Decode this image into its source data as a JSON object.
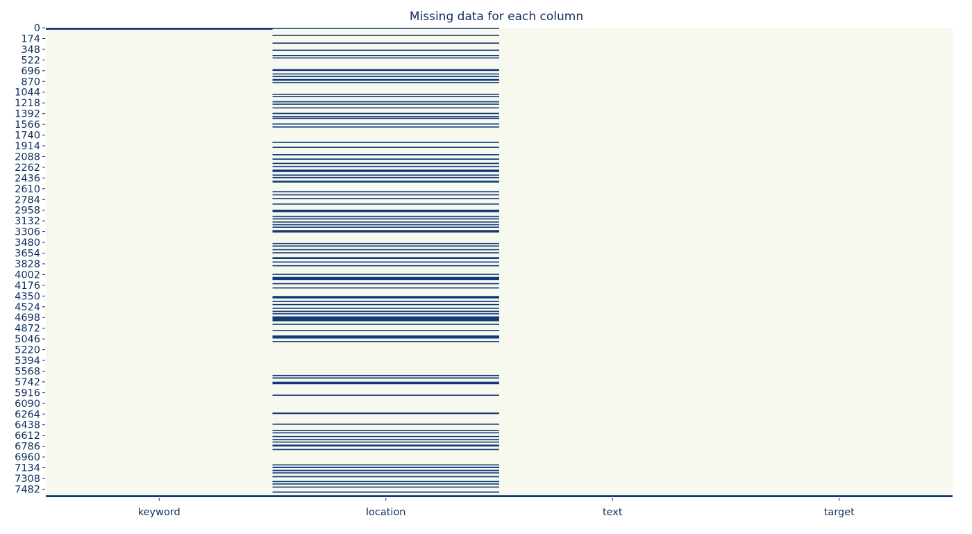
{
  "chart_data": {
    "type": "heatmap",
    "title": "Missing data for each column",
    "xlabel": "",
    "ylabel": "",
    "columns": [
      "keyword",
      "location",
      "text",
      "target"
    ],
    "y_tick_labels": [
      "0",
      "174",
      "348",
      "522",
      "696",
      "870",
      "1044",
      "1218",
      "1392",
      "1566",
      "1740",
      "1914",
      "2088",
      "2262",
      "2436",
      "2610",
      "2784",
      "2958",
      "3132",
      "3306",
      "3480",
      "3654",
      "3828",
      "4002",
      "4176",
      "4350",
      "4524",
      "4698",
      "4872",
      "5046",
      "5220",
      "5394",
      "5568",
      "5742",
      "5916",
      "6090",
      "6264",
      "6438",
      "6612",
      "6786",
      "6960",
      "7134",
      "7308",
      "7482"
    ],
    "row_count": 7613,
    "ylim": [
      0,
      7613
    ],
    "legend": "none",
    "colors": {
      "present": "#f7f9ee",
      "missing": "#123a7a",
      "text": "#0e2c5e"
    },
    "missing_rows": {
      "keyword": [
        [
          0,
          32
        ],
        [
          7581,
          7613
        ]
      ],
      "location": [
        [
          0,
          18
        ],
        [
          115,
          133
        ],
        [
          240,
          258
        ],
        [
          355,
          373
        ],
        [
          440,
          462
        ],
        [
          480,
          498
        ],
        [
          670,
          700
        ],
        [
          740,
          758
        ],
        [
          780,
          800
        ],
        [
          830,
          860
        ],
        [
          880,
          898
        ],
        [
          1070,
          1088
        ],
        [
          1105,
          1123
        ],
        [
          1190,
          1210
        ],
        [
          1230,
          1248
        ],
        [
          1290,
          1308
        ],
        [
          1380,
          1400
        ],
        [
          1430,
          1448
        ],
        [
          1460,
          1478
        ],
        [
          1550,
          1570
        ],
        [
          1600,
          1618
        ],
        [
          1850,
          1868
        ],
        [
          1930,
          1948
        ],
        [
          2050,
          2068
        ],
        [
          2120,
          2140
        ],
        [
          2190,
          2210
        ],
        [
          2240,
          2258
        ],
        [
          2300,
          2340
        ],
        [
          2380,
          2398
        ],
        [
          2420,
          2440
        ],
        [
          2480,
          2510
        ],
        [
          2650,
          2668
        ],
        [
          2700,
          2718
        ],
        [
          2760,
          2778
        ],
        [
          2850,
          2868
        ],
        [
          2950,
          2990
        ],
        [
          3050,
          3068
        ],
        [
          3090,
          3108
        ],
        [
          3140,
          3160
        ],
        [
          3185,
          3203
        ],
        [
          3225,
          3243
        ],
        [
          3280,
          3320
        ],
        [
          3490,
          3508
        ],
        [
          3530,
          3550
        ],
        [
          3590,
          3608
        ],
        [
          3640,
          3658
        ],
        [
          3720,
          3750
        ],
        [
          3790,
          3808
        ],
        [
          3850,
          3868
        ],
        [
          3990,
          4008
        ],
        [
          4040,
          4090
        ],
        [
          4140,
          4160
        ],
        [
          4210,
          4228
        ],
        [
          4350,
          4390
        ],
        [
          4430,
          4448
        ],
        [
          4480,
          4498
        ],
        [
          4540,
          4558
        ],
        [
          4590,
          4610
        ],
        [
          4630,
          4648
        ],
        [
          4680,
          4760
        ],
        [
          4800,
          4818
        ],
        [
          4900,
          4918
        ],
        [
          4990,
          5040
        ],
        [
          5080,
          5098
        ],
        [
          5630,
          5650
        ],
        [
          5670,
          5690
        ],
        [
          5740,
          5780
        ],
        [
          5950,
          5968
        ],
        [
          6240,
          6265
        ],
        [
          6420,
          6438
        ],
        [
          6520,
          6538
        ],
        [
          6560,
          6578
        ],
        [
          6620,
          6638
        ],
        [
          6670,
          6690
        ],
        [
          6710,
          6728
        ],
        [
          6760,
          6790
        ],
        [
          6830,
          6850
        ],
        [
          7080,
          7098
        ],
        [
          7120,
          7140
        ],
        [
          7170,
          7190
        ],
        [
          7210,
          7228
        ],
        [
          7270,
          7290
        ],
        [
          7350,
          7368
        ],
        [
          7390,
          7408
        ],
        [
          7440,
          7458
        ],
        [
          7520,
          7540
        ],
        [
          7581,
          7613
        ]
      ],
      "text": [
        [
          7581,
          7613
        ]
      ],
      "target": [
        [
          7581,
          7613
        ]
      ]
    }
  }
}
